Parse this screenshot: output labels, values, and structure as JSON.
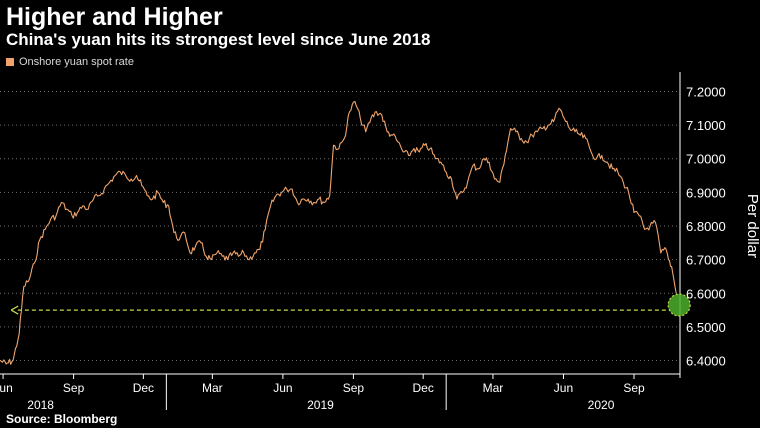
{
  "title": "Higher and Higher",
  "subtitle": "China's yuan hits its strongest level since June 2018",
  "source": "Source: Bloomberg",
  "colors": {
    "background": "#000000",
    "series": "#f0a46c",
    "arrow": "#c6d84a",
    "marker": "#4caf2a",
    "grid": "#6e6e6e"
  },
  "chart_data": {
    "type": "line",
    "title": "Higher and Higher",
    "subtitle": "China's yuan hits its strongest level since June 2018",
    "ylabel": "Per dollar",
    "xlabel": "",
    "ylim": [
      6.36,
      7.24
    ],
    "xlim": [
      "2018-05-28",
      "2020-10-31"
    ],
    "y_axis_side": "right",
    "grid": "horizontal dotted",
    "legend": "top-left",
    "yticks": [
      "6.4000",
      "6.5000",
      "6.6000",
      "6.7000",
      "6.8000",
      "6.9000",
      "7.0000",
      "7.1000",
      "7.2000"
    ],
    "xticks": [
      {
        "date": "2018-06-01",
        "label": "Jun"
      },
      {
        "date": "2018-09-01",
        "label": "Sep"
      },
      {
        "date": "2018-12-01",
        "label": "Dec"
      },
      {
        "date": "2019-03-01",
        "label": "Mar"
      },
      {
        "date": "2019-06-01",
        "label": "Jun"
      },
      {
        "date": "2019-09-01",
        "label": "Sep"
      },
      {
        "date": "2019-12-01",
        "label": "Dec"
      },
      {
        "date": "2020-03-01",
        "label": "Mar"
      },
      {
        "date": "2020-06-01",
        "label": "Jun"
      },
      {
        "date": "2020-09-01",
        "label": "Sep"
      }
    ],
    "year_labels": [
      {
        "date": "2018-07-20",
        "label": "2018"
      },
      {
        "date": "2019-07-20",
        "label": "2019"
      },
      {
        "date": "2020-07-20",
        "label": "2020"
      }
    ],
    "series": [
      {
        "name": "Onshore yuan spot rate",
        "points": [
          [
            "2018-05-28",
            6.4
          ],
          [
            "2018-06-05",
            6.39
          ],
          [
            "2018-06-14",
            6.4
          ],
          [
            "2018-06-22",
            6.48
          ],
          [
            "2018-06-28",
            6.62
          ],
          [
            "2018-07-05",
            6.64
          ],
          [
            "2018-07-12",
            6.69
          ],
          [
            "2018-07-19",
            6.76
          ],
          [
            "2018-07-26",
            6.79
          ],
          [
            "2018-08-02",
            6.82
          ],
          [
            "2018-08-09",
            6.83
          ],
          [
            "2018-08-16",
            6.87
          ],
          [
            "2018-08-23",
            6.85
          ],
          [
            "2018-08-30",
            6.83
          ],
          [
            "2018-09-06",
            6.84
          ],
          [
            "2018-09-13",
            6.86
          ],
          [
            "2018-09-20",
            6.85
          ],
          [
            "2018-09-27",
            6.88
          ],
          [
            "2018-10-04",
            6.89
          ],
          [
            "2018-10-11",
            6.91
          ],
          [
            "2018-10-18",
            6.93
          ],
          [
            "2018-10-25",
            6.95
          ],
          [
            "2018-11-01",
            6.96
          ],
          [
            "2018-11-08",
            6.95
          ],
          [
            "2018-11-15",
            6.94
          ],
          [
            "2018-11-22",
            6.95
          ],
          [
            "2018-11-29",
            6.92
          ],
          [
            "2018-12-06",
            6.89
          ],
          [
            "2018-12-13",
            6.88
          ],
          [
            "2018-12-20",
            6.9
          ],
          [
            "2018-12-27",
            6.87
          ],
          [
            "2019-01-03",
            6.86
          ],
          [
            "2019-01-10",
            6.78
          ],
          [
            "2019-01-17",
            6.76
          ],
          [
            "2019-01-24",
            6.78
          ],
          [
            "2019-01-31",
            6.72
          ],
          [
            "2019-02-07",
            6.74
          ],
          [
            "2019-02-14",
            6.75
          ],
          [
            "2019-02-21",
            6.71
          ],
          [
            "2019-02-28",
            6.7
          ],
          [
            "2019-03-07",
            6.72
          ],
          [
            "2019-03-14",
            6.71
          ],
          [
            "2019-03-21",
            6.7
          ],
          [
            "2019-03-28",
            6.72
          ],
          [
            "2019-04-04",
            6.71
          ],
          [
            "2019-04-11",
            6.72
          ],
          [
            "2019-04-18",
            6.7
          ],
          [
            "2019-04-25",
            6.72
          ],
          [
            "2019-05-02",
            6.73
          ],
          [
            "2019-05-09",
            6.79
          ],
          [
            "2019-05-16",
            6.86
          ],
          [
            "2019-05-23",
            6.89
          ],
          [
            "2019-05-30",
            6.9
          ],
          [
            "2019-06-06",
            6.91
          ],
          [
            "2019-06-13",
            6.91
          ],
          [
            "2019-06-20",
            6.87
          ],
          [
            "2019-06-27",
            6.88
          ],
          [
            "2019-07-04",
            6.88
          ],
          [
            "2019-07-11",
            6.87
          ],
          [
            "2019-07-18",
            6.88
          ],
          [
            "2019-07-25",
            6.87
          ],
          [
            "2019-08-01",
            6.89
          ],
          [
            "2019-08-06",
            7.04
          ],
          [
            "2019-08-13",
            7.03
          ],
          [
            "2019-08-20",
            7.06
          ],
          [
            "2019-08-27",
            7.14
          ],
          [
            "2019-09-03",
            7.17
          ],
          [
            "2019-09-10",
            7.12
          ],
          [
            "2019-09-17",
            7.08
          ],
          [
            "2019-09-24",
            7.12
          ],
          [
            "2019-10-01",
            7.14
          ],
          [
            "2019-10-08",
            7.13
          ],
          [
            "2019-10-15",
            7.08
          ],
          [
            "2019-10-22",
            7.07
          ],
          [
            "2019-10-29",
            7.05
          ],
          [
            "2019-11-05",
            7.02
          ],
          [
            "2019-11-12",
            7.01
          ],
          [
            "2019-11-19",
            7.03
          ],
          [
            "2019-11-26",
            7.02
          ],
          [
            "2019-12-03",
            7.04
          ],
          [
            "2019-12-10",
            7.03
          ],
          [
            "2019-12-17",
            7.0
          ],
          [
            "2019-12-24",
            6.99
          ],
          [
            "2019-12-31",
            6.96
          ],
          [
            "2020-01-07",
            6.94
          ],
          [
            "2020-01-14",
            6.88
          ],
          [
            "2020-01-21",
            6.9
          ],
          [
            "2020-01-28",
            6.93
          ],
          [
            "2020-02-04",
            6.98
          ],
          [
            "2020-02-11",
            6.97
          ],
          [
            "2020-02-18",
            7.0
          ],
          [
            "2020-02-25",
            6.99
          ],
          [
            "2020-03-03",
            6.94
          ],
          [
            "2020-03-10",
            6.93
          ],
          [
            "2020-03-17",
            7.01
          ],
          [
            "2020-03-24",
            7.09
          ],
          [
            "2020-03-31",
            7.08
          ],
          [
            "2020-04-07",
            7.06
          ],
          [
            "2020-04-14",
            7.05
          ],
          [
            "2020-04-21",
            7.07
          ],
          [
            "2020-04-28",
            7.08
          ],
          [
            "2020-05-05",
            7.09
          ],
          [
            "2020-05-12",
            7.1
          ],
          [
            "2020-05-19",
            7.11
          ],
          [
            "2020-05-26",
            7.15
          ],
          [
            "2020-06-02",
            7.12
          ],
          [
            "2020-06-09",
            7.09
          ],
          [
            "2020-06-16",
            7.08
          ],
          [
            "2020-06-23",
            7.07
          ],
          [
            "2020-06-30",
            7.06
          ],
          [
            "2020-07-07",
            7.02
          ],
          [
            "2020-07-14",
            7.0
          ],
          [
            "2020-07-21",
            7.01
          ],
          [
            "2020-07-28",
            6.99
          ],
          [
            "2020-08-04",
            6.97
          ],
          [
            "2020-08-11",
            6.96
          ],
          [
            "2020-08-18",
            6.93
          ],
          [
            "2020-08-25",
            6.9
          ],
          [
            "2020-09-01",
            6.84
          ],
          [
            "2020-09-08",
            6.83
          ],
          [
            "2020-09-15",
            6.79
          ],
          [
            "2020-09-22",
            6.8
          ],
          [
            "2020-09-29",
            6.81
          ],
          [
            "2020-10-06",
            6.72
          ],
          [
            "2020-10-13",
            6.73
          ],
          [
            "2020-10-16",
            6.7
          ],
          [
            "2020-10-20",
            6.68
          ],
          [
            "2020-10-23",
            6.64
          ],
          [
            "2020-10-26",
            6.6
          ]
        ]
      }
    ],
    "annotation": {
      "reference_level": 6.55,
      "from_date": "2020-10-23",
      "to_date": "2018-06-22",
      "marker_date": "2020-10-26",
      "marker_value": 6.565
    }
  }
}
